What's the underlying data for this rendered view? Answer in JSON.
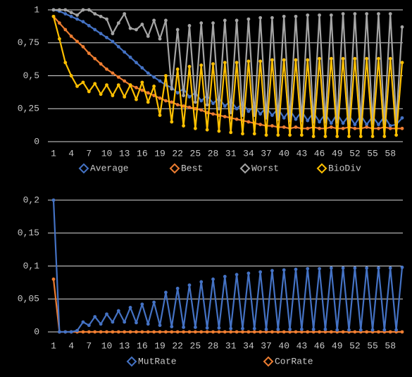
{
  "chart_data": [
    {
      "type": "line",
      "categories": [
        1,
        null,
        null,
        4,
        null,
        null,
        7,
        null,
        null,
        10,
        null,
        null,
        13,
        null,
        null,
        16,
        null,
        null,
        19,
        null,
        null,
        22,
        null,
        null,
        25,
        null,
        null,
        28,
        null,
        null,
        31,
        null,
        null,
        34,
        null,
        null,
        37,
        null,
        null,
        40,
        null,
        null,
        43,
        null,
        null,
        46,
        null,
        null,
        49,
        null,
        null,
        52,
        null,
        null,
        55,
        null,
        null,
        58,
        null,
        null
      ],
      "ylim": [
        0,
        1
      ],
      "yticks": [
        0,
        {
          "value": 0.25,
          "label": "0,25"
        },
        {
          "value": 0.5,
          "label": "0,5"
        },
        {
          "value": 0.75,
          "label": "0,75"
        },
        1
      ],
      "grid": true,
      "legend": "bottom",
      "series": [
        {
          "name": "Average",
          "color": "#4472c4",
          "values": [
            1,
            0.99,
            0.97,
            0.95,
            0.93,
            0.91,
            0.88,
            0.85,
            0.82,
            0.79,
            0.76,
            0.72,
            0.68,
            0.64,
            0.6,
            0.56,
            0.52,
            0.49,
            0.46,
            0.43,
            0.41,
            0.37,
            0.4,
            0.34,
            0.37,
            0.31,
            0.35,
            0.29,
            0.33,
            0.27,
            0.31,
            0.25,
            0.29,
            0.23,
            0.27,
            0.21,
            0.26,
            0.2,
            0.25,
            0.18,
            0.24,
            0.17,
            0.23,
            0.16,
            0.22,
            0.15,
            0.21,
            0.14,
            0.21,
            0.14,
            0.2,
            0.13,
            0.2,
            0.13,
            0.19,
            0.13,
            0.19,
            0.12,
            0.13,
            0.18
          ]
        },
        {
          "name": "Best",
          "color": "#ed7d31",
          "values": [
            0.95,
            0.9,
            0.85,
            0.8,
            0.76,
            0.72,
            0.67,
            0.63,
            0.59,
            0.55,
            0.52,
            0.49,
            0.46,
            0.43,
            0.41,
            0.39,
            0.37,
            0.35,
            0.33,
            0.31,
            0.3,
            0.28,
            0.27,
            0.26,
            0.25,
            0.24,
            0.22,
            0.21,
            0.2,
            0.19,
            0.18,
            0.17,
            0.16,
            0.15,
            0.14,
            0.13,
            0.12,
            0.12,
            0.11,
            0.11,
            0.1,
            0.11,
            0.1,
            0.1,
            0.11,
            0.1,
            0.1,
            0.11,
            0.1,
            0.1,
            0.11,
            0.1,
            0.1,
            0.11,
            0.1,
            0.1,
            0.11,
            0.1,
            0.1,
            0.1
          ]
        },
        {
          "name": "Worst",
          "color": "#a5a5a5",
          "values": [
            1,
            1,
            1,
            0.98,
            0.96,
            1,
            1,
            0.97,
            0.95,
            0.93,
            0.82,
            0.9,
            0.97,
            0.86,
            0.85,
            0.89,
            0.8,
            0.92,
            0.78,
            0.92,
            0.4,
            0.85,
            0.35,
            0.88,
            0.3,
            0.9,
            0.28,
            0.9,
            0.25,
            0.92,
            0.22,
            0.92,
            0.2,
            0.93,
            0.2,
            0.94,
            0.18,
            0.94,
            0.17,
            0.95,
            0.16,
            0.95,
            0.16,
            0.96,
            0.15,
            0.96,
            0.15,
            0.96,
            0.15,
            0.97,
            0.14,
            0.97,
            0.14,
            0.97,
            0.14,
            0.97,
            0.14,
            0.97,
            0.15,
            0.87
          ]
        },
        {
          "name": "BioDiv",
          "color": "#ffc000",
          "values": [
            0.95,
            0.78,
            0.6,
            0.5,
            0.42,
            0.45,
            0.38,
            0.44,
            0.36,
            0.43,
            0.35,
            0.43,
            0.34,
            0.43,
            0.32,
            0.45,
            0.3,
            0.42,
            0.2,
            0.5,
            0.15,
            0.55,
            0.12,
            0.57,
            0.1,
            0.58,
            0.09,
            0.59,
            0.08,
            0.6,
            0.07,
            0.6,
            0.06,
            0.61,
            0.06,
            0.61,
            0.05,
            0.62,
            0.05,
            0.62,
            0.05,
            0.62,
            0.05,
            0.62,
            0.04,
            0.63,
            0.04,
            0.63,
            0.04,
            0.63,
            0.04,
            0.63,
            0.04,
            0.63,
            0.04,
            0.63,
            0.04,
            0.63,
            0.05,
            0.6
          ]
        }
      ]
    },
    {
      "type": "line",
      "categories": [
        1,
        null,
        null,
        4,
        null,
        null,
        7,
        null,
        null,
        10,
        null,
        null,
        13,
        null,
        null,
        16,
        null,
        null,
        19,
        null,
        null,
        22,
        null,
        null,
        25,
        null,
        null,
        28,
        null,
        null,
        31,
        null,
        null,
        34,
        null,
        null,
        37,
        null,
        null,
        40,
        null,
        null,
        43,
        null,
        null,
        46,
        null,
        null,
        49,
        null,
        null,
        52,
        null,
        null,
        55,
        null,
        null,
        58,
        null,
        null
      ],
      "ylim": [
        0,
        0.2
      ],
      "yticks": [
        0,
        {
          "value": 0.05,
          "label": "0,05"
        },
        {
          "value": 0.1,
          "label": "0,1"
        },
        {
          "value": 0.15,
          "label": "0,15"
        },
        {
          "value": 0.2,
          "label": "0,2"
        }
      ],
      "grid": true,
      "legend": "bottom",
      "series": [
        {
          "name": "MutRate",
          "color": "#4472c4",
          "values": [
            0.2,
            0,
            0,
            0,
            0.002,
            0.015,
            0.01,
            0.023,
            0.012,
            0.027,
            0.015,
            0.032,
            0.015,
            0.037,
            0.014,
            0.042,
            0.012,
            0.045,
            0.01,
            0.06,
            0.008,
            0.066,
            0.007,
            0.071,
            0.007,
            0.076,
            0.006,
            0.08,
            0.006,
            0.084,
            0.005,
            0.087,
            0.005,
            0.089,
            0.005,
            0.091,
            0.004,
            0.093,
            0.004,
            0.094,
            0.004,
            0.095,
            0.004,
            0.096,
            0.004,
            0.096,
            0.004,
            0.097,
            0.003,
            0.097,
            0.003,
            0.097,
            0.003,
            0.097,
            0.003,
            0.097,
            0.003,
            0.097,
            0.003,
            0.098
          ]
        },
        {
          "name": "CorRate",
          "color": "#ed7d31",
          "values": [
            0.08,
            0,
            0,
            0,
            0,
            0,
            0,
            0,
            0,
            0,
            0,
            0,
            0,
            0,
            0,
            0,
            0,
            0,
            0,
            0,
            0,
            0,
            0,
            0,
            0,
            0,
            0,
            0,
            0,
            0,
            0,
            0,
            0,
            0,
            0,
            0,
            0,
            0,
            0,
            0,
            0,
            0,
            0,
            0,
            0,
            0,
            0,
            0,
            0,
            0,
            0,
            0,
            0,
            0,
            0,
            0,
            0,
            0,
            0,
            0
          ]
        }
      ]
    }
  ]
}
